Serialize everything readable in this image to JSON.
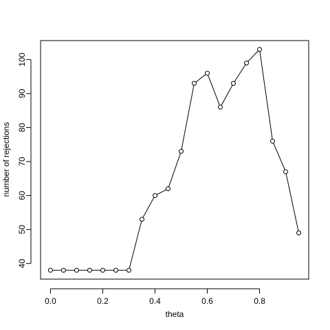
{
  "chart_data": {
    "type": "line",
    "x_label": "theta",
    "y_label": "number of rejections",
    "x": [
      0,
      0.05,
      0.1,
      0.15,
      0.2,
      0.25,
      0.3,
      0.35,
      0.4,
      0.45,
      0.5,
      0.55,
      0.6,
      0.65,
      0.7,
      0.75,
      0.8,
      0.85,
      0.9,
      0.95
    ],
    "values": [
      38,
      38,
      38,
      38,
      38,
      38,
      38,
      53,
      60,
      62,
      73,
      93,
      96,
      86,
      93,
      99,
      103,
      76,
      67,
      49
    ],
    "color": "#000000",
    "xlim": [
      -0.038,
      0.988
    ],
    "ylim": [
      35.4,
      105.6
    ],
    "xticks": [
      {
        "value": 0,
        "label": "0.0"
      },
      0.2,
      0.4,
      0.6,
      0.8
    ],
    "yticks": [
      40,
      50,
      60,
      70,
      80,
      90,
      100
    ]
  }
}
